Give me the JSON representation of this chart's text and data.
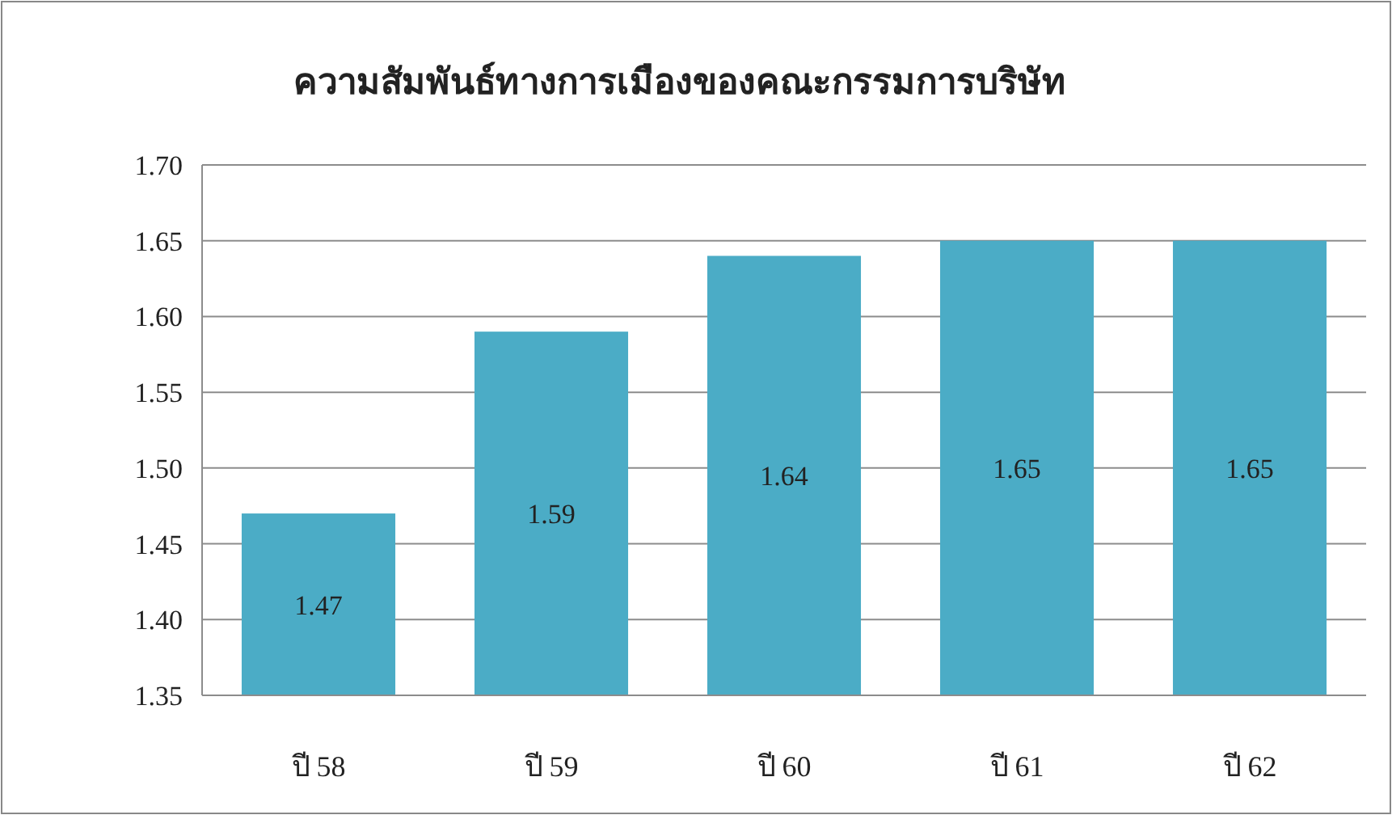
{
  "chart_data": {
    "type": "bar",
    "title": "ความสัมพันธ์ทางการเมืองของคณะกรรมการบริษัท",
    "categories": [
      "ปี 58",
      "ปี 59",
      "ปี 60",
      "ปี 61",
      "ปี 62"
    ],
    "values": [
      1.47,
      1.59,
      1.64,
      1.65,
      1.65
    ],
    "color": "#4bacc6",
    "ylim": [
      1.35,
      1.7
    ],
    "yticks": [
      "1.35",
      "1.40",
      "1.45",
      "1.50",
      "1.55",
      "1.60",
      "1.65",
      "1.70"
    ],
    "grid": "y",
    "data_labels": true
  }
}
